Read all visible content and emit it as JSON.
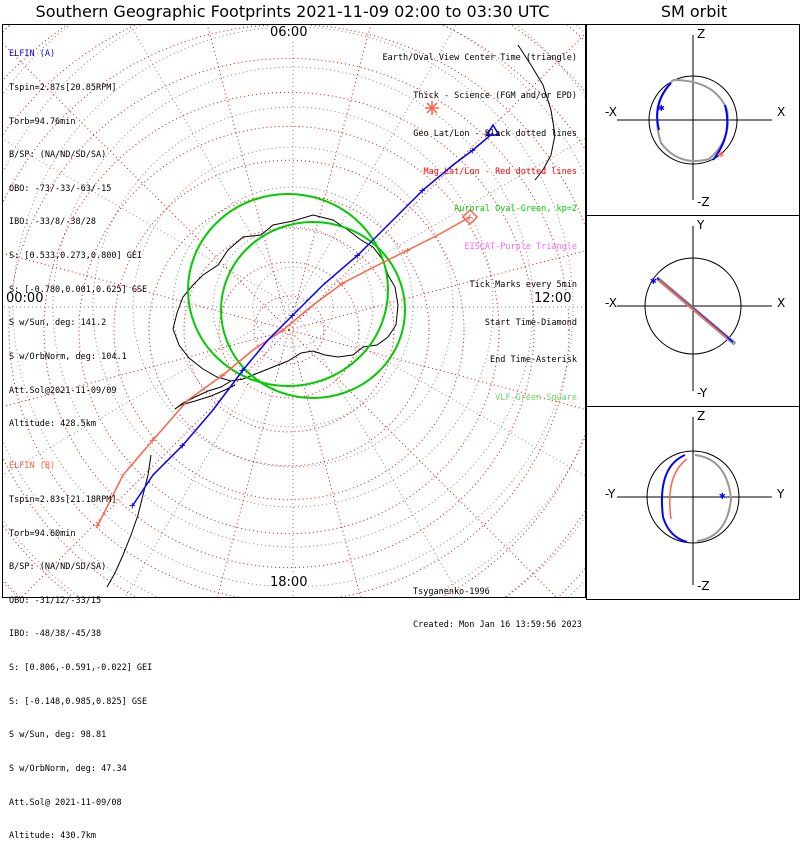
{
  "title": "Southern Geographic Footprints 2021-11-09 02:00 to 03:30 UTC",
  "sm_title": "SM orbit",
  "mlt_labels": {
    "top": "06:00",
    "left": "00:00",
    "right": "12:00",
    "bottom": "18:00"
  },
  "elfin_a": {
    "name": "ELFIN (A)",
    "color": "#0000ff",
    "lines": [
      "Tspin=2.87s[20.85RPM]",
      "Torb=94.76min",
      "B/SP: (NA/ND/SD/SA)",
      "OBO: -73/-33/-63/-15",
      "IBO: -33/8/-38/28",
      "S: [0.533,0.273,0.800] GEI",
      "S: [-0.780,0.001,0.625] GSE",
      "S w/Sun, deg: 141.2",
      "S w/OrbNorm, deg: 104.1",
      "Att.Sol@2021-11-09/09",
      "Altitude: 428.5km"
    ]
  },
  "elfin_b": {
    "name": "ELFIN (B)",
    "color": "#ff6347",
    "lines": [
      "Tspin=2.83s[21.18RPM]",
      "Torb=94.60min",
      "B/SP: (NA/ND/SD/SA)",
      "OBO: -31/12/-33/15",
      "IBO: -48/38/-45/38",
      "S: [0.806,-0.591,-0.022] GEI",
      "S: [-0.148,0.985,0.825] GSE",
      "S w/Sun, deg: 98.81",
      "S w/OrbNorm, deg: 47.34",
      "Att.Sol@ 2021-11-09/08",
      "Altitude: 430.7km"
    ]
  },
  "legend": [
    {
      "text": "Earth/Oval View Center Time (triangle)",
      "color": "#000000"
    },
    {
      "text": "Thick - Science (FGM and/or EPD)",
      "color": "#000000"
    },
    {
      "text": "Geo Lat/Lon - Black dotted lines",
      "color": "#000000"
    },
    {
      "text": "Mag Lat/Lon - Red dotted lines",
      "color": "#ff0000"
    },
    {
      "text": "Auroral Oval-Green, kp=2",
      "color": "#00cc00"
    },
    {
      "text": "EISCAT-Purple Triangle",
      "color": "#ff66ff"
    },
    {
      "text": "Tick Marks every 5min",
      "color": "#000000"
    },
    {
      "text": "Start Time-Diamond",
      "color": "#000000"
    },
    {
      "text": "End Time-Asterisk",
      "color": "#000000"
    },
    {
      "text": "VLF-Green Square",
      "color": "#66dd66"
    }
  ],
  "footer": {
    "model": "Tsyganenko-1996",
    "created": "Created: Mon Jan 16 13:59:56 2023"
  },
  "sm_panels": [
    {
      "top": "Z",
      "bottom": "-Z",
      "left": "-X",
      "right": "X"
    },
    {
      "top": "Y",
      "bottom": "-Y",
      "left": "-X",
      "right": "X"
    },
    {
      "top": "Z",
      "bottom": "-Z",
      "left": "-Y",
      "right": "Y"
    }
  ]
}
